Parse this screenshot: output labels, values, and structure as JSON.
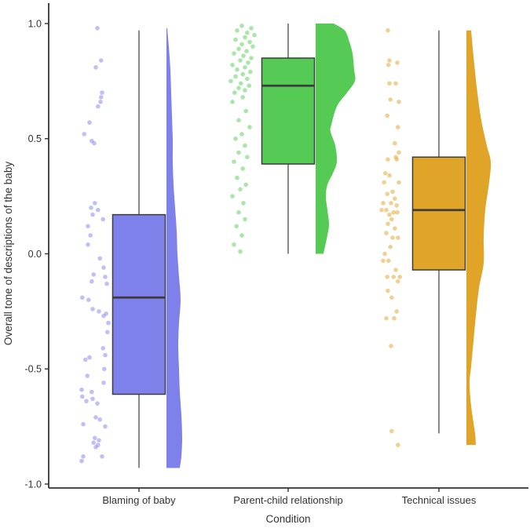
{
  "chart_data": {
    "type": "raincloud (jittered scatter + boxplot + half-violin)",
    "title": "",
    "xlabel": "Condition",
    "ylabel": "Overall tone of descriptions of the baby",
    "ylim": [
      -1.0,
      1.0
    ],
    "grid": "off",
    "legend": "none",
    "y_ticks": [
      {
        "value": 1.0,
        "label": "1.0"
      },
      {
        "value": 0.5,
        "label": "0.5"
      },
      {
        "value": 0.0,
        "label": "0.0"
      },
      {
        "value": -0.5,
        "label": "-0.5"
      },
      {
        "value": -1.0,
        "label": "-1.0"
      }
    ],
    "categories": [
      "Blaming of baby",
      "Parent-child relationship",
      "Technical issues"
    ],
    "style": {
      "background": "#FFFFFF",
      "axis_color": "#333333",
      "box_stroke": "#3C3C3C",
      "point_opacity": 0.5,
      "violin_opacity": 1.0
    },
    "series": [
      {
        "name": "Blaming of baby",
        "color": "#7F81EA",
        "box": {
          "whisker_low": -0.93,
          "q1": -0.61,
          "median": -0.19,
          "q3": 0.17,
          "whisker_high": 0.97
        },
        "points": [
          [
            0.98,
            0.6
          ],
          [
            0.84,
            0.72
          ],
          [
            0.81,
            0.55
          ],
          [
            0.7,
            0.75
          ],
          [
            0.68,
            0.72
          ],
          [
            0.66,
            0.7
          ],
          [
            0.64,
            0.62
          ],
          [
            0.57,
            0.35
          ],
          [
            0.52,
            0.18
          ],
          [
            0.49,
            0.42
          ],
          [
            0.48,
            0.5
          ],
          [
            0.22,
            0.52
          ],
          [
            0.2,
            0.4
          ],
          [
            0.19,
            0.62
          ],
          [
            0.17,
            0.45
          ],
          [
            0.15,
            0.78
          ],
          [
            0.12,
            0.3
          ],
          [
            0.08,
            0.38
          ],
          [
            0.04,
            0.3
          ],
          [
            -0.02,
            0.68
          ],
          [
            -0.06,
            0.8
          ],
          [
            -0.09,
            0.48
          ],
          [
            -0.1,
            0.85
          ],
          [
            -0.12,
            0.42
          ],
          [
            -0.13,
            0.9
          ],
          [
            -0.19,
            0.12
          ],
          [
            -0.2,
            0.32
          ],
          [
            -0.24,
            0.45
          ],
          [
            -0.25,
            0.65
          ],
          [
            -0.26,
            0.88
          ],
          [
            -0.27,
            0.8
          ],
          [
            -0.3,
            0.95
          ],
          [
            -0.34,
            0.92
          ],
          [
            -0.41,
            0.78
          ],
          [
            -0.44,
            0.85
          ],
          [
            -0.45,
            0.35
          ],
          [
            -0.46,
            0.22
          ],
          [
            -0.5,
            0.82
          ],
          [
            -0.53,
            0.28
          ],
          [
            -0.56,
            0.8
          ],
          [
            -0.59,
            0.1
          ],
          [
            -0.6,
            0.42
          ],
          [
            -0.62,
            0.12
          ],
          [
            -0.63,
            0.45
          ],
          [
            -0.64,
            0.25
          ],
          [
            -0.65,
            0.6
          ],
          [
            -0.71,
            0.55
          ],
          [
            -0.72,
            0.68
          ],
          [
            -0.74,
            0.15
          ],
          [
            -0.75,
            0.85
          ],
          [
            -0.8,
            0.52
          ],
          [
            -0.81,
            0.65
          ],
          [
            -0.82,
            0.48
          ],
          [
            -0.83,
            0.62
          ],
          [
            -0.84,
            0.55
          ],
          [
            -0.88,
            0.15
          ],
          [
            -0.88,
            0.75
          ],
          [
            -0.9,
            0.1
          ]
        ],
        "violin_profile": [
          [
            0.98,
            1
          ],
          [
            0.9,
            3
          ],
          [
            0.8,
            5
          ],
          [
            0.7,
            6
          ],
          [
            0.6,
            7
          ],
          [
            0.5,
            8
          ],
          [
            0.4,
            8
          ],
          [
            0.3,
            9
          ],
          [
            0.2,
            11
          ],
          [
            0.1,
            13
          ],
          [
            0.0,
            14
          ],
          [
            -0.1,
            16
          ],
          [
            -0.2,
            18
          ],
          [
            -0.3,
            16
          ],
          [
            -0.4,
            15
          ],
          [
            -0.5,
            16
          ],
          [
            -0.6,
            17
          ],
          [
            -0.7,
            19
          ],
          [
            -0.8,
            20
          ],
          [
            -0.88,
            19
          ],
          [
            -0.93,
            17
          ]
        ]
      },
      {
        "name": "Parent-child relationship",
        "color": "#55CB55",
        "box": {
          "whisker_low": 0.0,
          "q1": 0.39,
          "median": 0.73,
          "q3": 0.85,
          "whisker_high": 1.0
        },
        "points": [
          [
            0.99,
            0.45
          ],
          [
            0.98,
            0.75
          ],
          [
            0.97,
            0.3
          ],
          [
            0.96,
            0.62
          ],
          [
            0.95,
            0.85
          ],
          [
            0.94,
            0.55
          ],
          [
            0.93,
            0.25
          ],
          [
            0.92,
            0.7
          ],
          [
            0.91,
            0.45
          ],
          [
            0.9,
            0.8
          ],
          [
            0.89,
            0.35
          ],
          [
            0.88,
            0.6
          ],
          [
            0.87,
            0.2
          ],
          [
            0.86,
            0.5
          ],
          [
            0.85,
            0.75
          ],
          [
            0.84,
            0.4
          ],
          [
            0.83,
            0.65
          ],
          [
            0.82,
            0.15
          ],
          [
            0.81,
            0.55
          ],
          [
            0.8,
            0.3
          ],
          [
            0.79,
            0.72
          ],
          [
            0.78,
            0.48
          ],
          [
            0.77,
            0.25
          ],
          [
            0.76,
            0.62
          ],
          [
            0.75,
            0.1
          ],
          [
            0.74,
            0.42
          ],
          [
            0.73,
            0.68
          ],
          [
            0.72,
            0.35
          ],
          [
            0.71,
            0.55
          ],
          [
            0.7,
            0.22
          ],
          [
            0.68,
            0.48
          ],
          [
            0.66,
            0.15
          ],
          [
            0.62,
            0.58
          ],
          [
            0.58,
            0.35
          ],
          [
            0.55,
            0.7
          ],
          [
            0.52,
            0.45
          ],
          [
            0.5,
            0.25
          ],
          [
            0.47,
            0.55
          ],
          [
            0.44,
            0.35
          ],
          [
            0.42,
            0.62
          ],
          [
            0.4,
            0.2
          ],
          [
            0.37,
            0.48
          ],
          [
            0.33,
            0.3
          ],
          [
            0.3,
            0.58
          ],
          [
            0.28,
            0.4
          ],
          [
            0.25,
            0.15
          ],
          [
            0.22,
            0.5
          ],
          [
            0.18,
            0.35
          ],
          [
            0.15,
            0.55
          ],
          [
            0.12,
            0.28
          ],
          [
            0.08,
            0.45
          ],
          [
            0.04,
            0.2
          ],
          [
            0.01,
            0.4
          ]
        ],
        "violin_profile": [
          [
            1.0,
            23
          ],
          [
            0.97,
            37
          ],
          [
            0.92,
            43
          ],
          [
            0.87,
            47
          ],
          [
            0.8,
            49
          ],
          [
            0.75,
            50
          ],
          [
            0.7,
            40
          ],
          [
            0.64,
            27
          ],
          [
            0.56,
            20
          ],
          [
            0.53,
            19
          ],
          [
            0.47,
            25
          ],
          [
            0.4,
            27
          ],
          [
            0.35,
            22
          ],
          [
            0.3,
            15
          ],
          [
            0.25,
            13
          ],
          [
            0.19,
            15
          ],
          [
            0.13,
            17
          ],
          [
            0.08,
            15
          ],
          [
            0.0,
            10
          ]
        ]
      },
      {
        "name": "Technical issues",
        "color": "#E0A428",
        "box": {
          "whisker_low": -0.78,
          "q1": -0.07,
          "median": 0.19,
          "q3": 0.42,
          "whisker_high": 0.97
        },
        "points": [
          [
            0.97,
            0.3
          ],
          [
            0.84,
            0.35
          ],
          [
            0.83,
            0.6
          ],
          [
            0.82,
            0.32
          ],
          [
            0.74,
            0.35
          ],
          [
            0.74,
            0.55
          ],
          [
            0.67,
            0.38
          ],
          [
            0.66,
            0.65
          ],
          [
            0.6,
            0.28
          ],
          [
            0.55,
            0.62
          ],
          [
            0.48,
            0.52
          ],
          [
            0.44,
            0.65
          ],
          [
            0.42,
            0.55
          ],
          [
            0.41,
            0.3
          ],
          [
            0.41,
            0.58
          ],
          [
            0.35,
            0.22
          ],
          [
            0.34,
            0.35
          ],
          [
            0.31,
            0.18
          ],
          [
            0.31,
            0.65
          ],
          [
            0.27,
            0.45
          ],
          [
            0.26,
            0.28
          ],
          [
            0.24,
            0.52
          ],
          [
            0.22,
            0.15
          ],
          [
            0.22,
            0.4
          ],
          [
            0.21,
            0.58
          ],
          [
            0.19,
            0.1
          ],
          [
            0.19,
            0.25
          ],
          [
            0.18,
            0.48
          ],
          [
            0.18,
            0.6
          ],
          [
            0.17,
            0.35
          ],
          [
            0.15,
            0.42
          ],
          [
            0.13,
            0.3
          ],
          [
            0.11,
            0.52
          ],
          [
            0.09,
            0.25
          ],
          [
            0.07,
            0.62
          ],
          [
            0.07,
            0.45
          ],
          [
            0.03,
            0.38
          ],
          [
            0.0,
            0.2
          ],
          [
            -0.03,
            0.15
          ],
          [
            -0.03,
            0.32
          ],
          [
            -0.07,
            0.55
          ],
          [
            -0.1,
            0.48
          ],
          [
            -0.1,
            0.68
          ],
          [
            -0.1,
            0.28
          ],
          [
            -0.12,
            0.62
          ],
          [
            -0.16,
            0.3
          ],
          [
            -0.19,
            0.42
          ],
          [
            -0.25,
            0.58
          ],
          [
            -0.28,
            0.25
          ],
          [
            -0.28,
            0.5
          ],
          [
            -0.4,
            0.4
          ],
          [
            -0.77,
            0.42
          ],
          [
            -0.83,
            0.62
          ]
        ],
        "violin_profile": [
          [
            0.97,
            6
          ],
          [
            0.86,
            9
          ],
          [
            0.7,
            14
          ],
          [
            0.58,
            19
          ],
          [
            0.47,
            26
          ],
          [
            0.4,
            31
          ],
          [
            0.31,
            29
          ],
          [
            0.19,
            24
          ],
          [
            0.07,
            22
          ],
          [
            -0.04,
            22
          ],
          [
            -0.15,
            16
          ],
          [
            -0.27,
            12
          ],
          [
            -0.38,
            9
          ],
          [
            -0.49,
            6
          ],
          [
            -0.56,
            4
          ],
          [
            -0.66,
            6
          ],
          [
            -0.78,
            11
          ],
          [
            -0.83,
            12
          ]
        ]
      }
    ]
  }
}
